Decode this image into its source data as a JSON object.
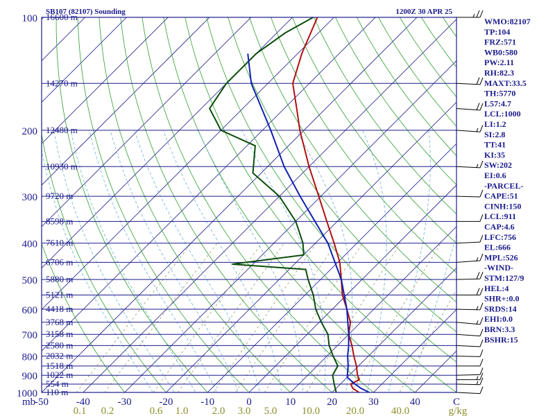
{
  "header": {
    "station_title": "SB107 (82107) Sounding",
    "valid_time": "1200Z 30 APR 25"
  },
  "pressure_axis": {
    "unit_label": "mb",
    "labels": [
      {
        "p": 100,
        "text": "100"
      },
      {
        "p": 200,
        "text": "200"
      },
      {
        "p": 300,
        "text": "300"
      },
      {
        "p": 400,
        "text": "400"
      },
      {
        "p": 500,
        "text": "500"
      },
      {
        "p": 600,
        "text": "600"
      },
      {
        "p": 700,
        "text": "700"
      },
      {
        "p": 800,
        "text": "800"
      },
      {
        "p": 900,
        "text": "900"
      },
      {
        "p": 1000,
        "text": "1000"
      }
    ]
  },
  "height_labels": [
    {
      "p": 100,
      "text": "16600 m"
    },
    {
      "p": 150,
      "text": "14270 m"
    },
    {
      "p": 200,
      "text": "12480 m"
    },
    {
      "p": 250,
      "text": "10930 m"
    },
    {
      "p": 300,
      "text": "9720 m"
    },
    {
      "p": 350,
      "text": "8598 m"
    },
    {
      "p": 400,
      "text": "7610 m"
    },
    {
      "p": 450,
      "text": "6706 m"
    },
    {
      "p": 500,
      "text": "5880 m"
    },
    {
      "p": 550,
      "text": "5121 m"
    },
    {
      "p": 600,
      "text": "4418 m"
    },
    {
      "p": 650,
      "text": "3768 m"
    },
    {
      "p": 700,
      "text": "3158 m"
    },
    {
      "p": 750,
      "text": "2580 m"
    },
    {
      "p": 800,
      "text": "2032 m"
    },
    {
      "p": 850,
      "text": "1518 m"
    },
    {
      "p": 900,
      "text": "1022 m"
    },
    {
      "p": 950,
      "text": "554 m"
    },
    {
      "p": 1000,
      "text": "110 m"
    }
  ],
  "temp_axis": {
    "labels": [
      "-50",
      "-40",
      "-30",
      "-20",
      "-10",
      "0",
      "10",
      "20",
      "30",
      "40",
      "C"
    ]
  },
  "mixing_ratio_axis": {
    "labels": [
      "0.1",
      "0.2",
      "0.6",
      "1.0",
      "2.0",
      "3.0",
      "5.0",
      "10.0",
      "20.0",
      "40.0",
      "g/kg"
    ]
  },
  "indices": [
    "WMO:82107",
    "TP:104",
    "FRZ:571",
    "WB0:580",
    "PW:2.11",
    "RH:82.3",
    "MAXT:33.5",
    "TH:5770",
    "L57:4.7",
    "LCL:1000",
    "LI:1.2",
    "SI:2.8",
    "TT:41",
    "KI:35",
    "SW:202",
    "EI:0.6",
    "-PARCEL-",
    "CAPE:51",
    "CINH:150",
    "LCL:911",
    "CAP:4.6",
    "LFC:756",
    "EL:666",
    "MPL:526",
    "-WIND-",
    "STM:127/9",
    "HEL:4",
    "SHR+:0.0",
    "SRDS:14",
    "EHI:0.0",
    "BRN:3.3",
    "BSHR:15"
  ],
  "colors": {
    "isobar": "#1a1a8c",
    "isotherm": "#1a1a8c",
    "dry_adiabat": "#2e9e2e",
    "moist_adiabat": "#6ab0d8",
    "mixing_ratio": "#999966",
    "temperature": "#b01010",
    "dewpoint": "#0b4d0b",
    "parcel": "#1020b0",
    "label_text": "#1a1a8c",
    "mixing_text": "#8c8c2a"
  },
  "chart_data": {
    "type": "line",
    "title": "SB107 (82107) Sounding",
    "xlabel": "C",
    "ylabel": "mb",
    "ylim": [
      1000,
      100
    ],
    "xlim_at_surface": [
      -50,
      50
    ],
    "skew": "skew-T log-p",
    "series": [
      {
        "name": "temperature",
        "points": [
          {
            "p": 1000,
            "t": 26.5
          },
          {
            "p": 975,
            "t": 24.0
          },
          {
            "p": 950,
            "t": 22.5
          },
          {
            "p": 925,
            "t": 23.5
          },
          {
            "p": 900,
            "t": 22.0
          },
          {
            "p": 850,
            "t": 19.5
          },
          {
            "p": 800,
            "t": 16.5
          },
          {
            "p": 750,
            "t": 13.5
          },
          {
            "p": 700,
            "t": 10.0
          },
          {
            "p": 650,
            "t": 7.5
          },
          {
            "p": 600,
            "t": 3.5
          },
          {
            "p": 550,
            "t": -1.0
          },
          {
            "p": 500,
            "t": -5.0
          },
          {
            "p": 450,
            "t": -9.5
          },
          {
            "p": 400,
            "t": -15.5
          },
          {
            "p": 350,
            "t": -22.5
          },
          {
            "p": 300,
            "t": -30.5
          },
          {
            "p": 250,
            "t": -40.0
          },
          {
            "p": 200,
            "t": -51.0
          },
          {
            "p": 175,
            "t": -57.0
          },
          {
            "p": 150,
            "t": -64.0
          },
          {
            "p": 125,
            "t": -69.0
          },
          {
            "p": 100,
            "t": -74.0
          }
        ]
      },
      {
        "name": "dewpoint",
        "points": [
          {
            "p": 1000,
            "t": 21.0
          },
          {
            "p": 950,
            "t": 18.5
          },
          {
            "p": 900,
            "t": 16.0
          },
          {
            "p": 850,
            "t": 15.0
          },
          {
            "p": 800,
            "t": 11.5
          },
          {
            "p": 750,
            "t": 8.0
          },
          {
            "p": 700,
            "t": 5.0
          },
          {
            "p": 650,
            "t": 0.5
          },
          {
            "p": 600,
            "t": -4.0
          },
          {
            "p": 550,
            "t": -8.0
          },
          {
            "p": 500,
            "t": -13.0
          },
          {
            "p": 470,
            "t": -16.0
          },
          {
            "p": 455,
            "t": -35.0
          },
          {
            "p": 430,
            "t": -20.0
          },
          {
            "p": 400,
            "t": -23.0
          },
          {
            "p": 350,
            "t": -30.0
          },
          {
            "p": 300,
            "t": -40.0
          },
          {
            "p": 260,
            "t": -52.0
          },
          {
            "p": 220,
            "t": -58.0
          },
          {
            "p": 200,
            "t": -70.0
          },
          {
            "p": 175,
            "t": -78.0
          },
          {
            "p": 150,
            "t": -80.0
          },
          {
            "p": 125,
            "t": -80.0
          },
          {
            "p": 110,
            "t": -78.0
          },
          {
            "p": 100,
            "t": -75.0
          }
        ]
      },
      {
        "name": "parcel",
        "points": [
          {
            "p": 1000,
            "t": 29.0
          },
          {
            "p": 975,
            "t": 26.0
          },
          {
            "p": 950,
            "t": 23.5
          },
          {
            "p": 911,
            "t": 20.0
          },
          {
            "p": 850,
            "t": 17.5
          },
          {
            "p": 800,
            "t": 15.0
          },
          {
            "p": 756,
            "t": 13.0
          },
          {
            "p": 700,
            "t": 10.0
          },
          {
            "p": 600,
            "t": 3.5
          },
          {
            "p": 500,
            "t": -5.0
          },
          {
            "p": 400,
            "t": -17.0
          },
          {
            "p": 300,
            "t": -35.0
          },
          {
            "p": 250,
            "t": -46.0
          },
          {
            "p": 200,
            "t": -58.0
          },
          {
            "p": 150,
            "t": -74.0
          },
          {
            "p": 125,
            "t": -82.0
          }
        ]
      }
    ],
    "wind_barbs": [
      {
        "p": 1000,
        "dir": 250,
        "spd": 10
      },
      {
        "p": 950,
        "dir": 260,
        "spd": 15
      },
      {
        "p": 925,
        "dir": 270,
        "spd": 15
      },
      {
        "p": 900,
        "dir": 280,
        "spd": 10
      },
      {
        "p": 850,
        "dir": 270,
        "spd": 10
      },
      {
        "p": 800,
        "dir": 260,
        "spd": 10
      },
      {
        "p": 750,
        "dir": 250,
        "spd": 10
      },
      {
        "p": 700,
        "dir": 240,
        "spd": 10
      },
      {
        "p": 650,
        "dir": 230,
        "spd": 15
      },
      {
        "p": 600,
        "dir": 260,
        "spd": 15
      },
      {
        "p": 550,
        "dir": 270,
        "spd": 20
      },
      {
        "p": 500,
        "dir": 280,
        "spd": 20
      },
      {
        "p": 450,
        "dir": 300,
        "spd": 15
      },
      {
        "p": 400,
        "dir": 290,
        "spd": 10
      },
      {
        "p": 350,
        "dir": 270,
        "spd": 10
      },
      {
        "p": 300,
        "dir": 260,
        "spd": 10
      },
      {
        "p": 250,
        "dir": 250,
        "spd": 15
      },
      {
        "p": 200,
        "dir": 240,
        "spd": 15
      },
      {
        "p": 175,
        "dir": 240,
        "spd": 20
      },
      {
        "p": 150,
        "dir": 250,
        "spd": 20
      },
      {
        "p": 100,
        "dir": 270,
        "spd": 25
      }
    ]
  }
}
